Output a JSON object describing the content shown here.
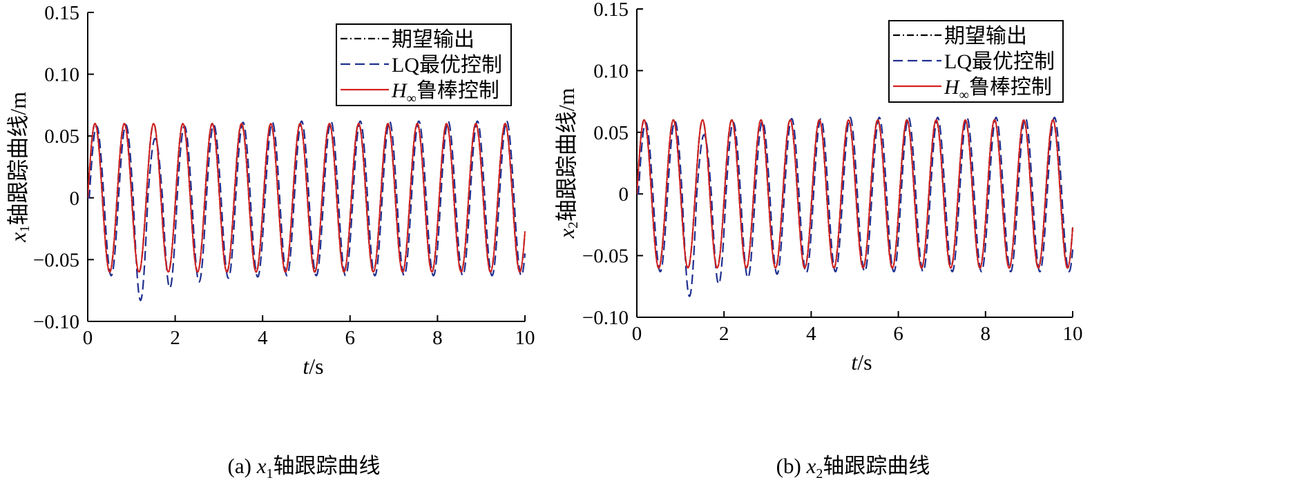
{
  "chart_data": [
    {
      "type": "line",
      "caption": "(a) x₁轴跟踪曲线",
      "xlabel": "t/s",
      "ylabel": "x₁轴跟踪曲线/m",
      "xlim": [
        0,
        10
      ],
      "ylim": [
        -0.1,
        0.15
      ],
      "xticks": [
        "0",
        "2",
        "4",
        "6",
        "8",
        "10"
      ],
      "yticks": [
        "0.15",
        "0.10",
        "0.05",
        "0",
        "−0.05",
        "−0.10"
      ],
      "legend_position": "top-right",
      "grid": false,
      "oscillation_period_s": 0.67,
      "series": [
        {
          "name": "期望输出",
          "style": "dash-dot",
          "color": "#000000",
          "amplitude": 0.06
        },
        {
          "name": "LQ最优控制",
          "style": "dashed",
          "color": "#1f2f8f",
          "trough_values": [
            -0.063,
            -0.083,
            -0.073,
            -0.068,
            -0.065,
            -0.064,
            -0.063,
            -0.063,
            -0.063,
            -0.063,
            -0.063,
            -0.063,
            -0.063,
            -0.063,
            -0.063
          ],
          "peak_values": [
            0.058,
            0.059,
            0.048,
            0.058,
            0.059,
            0.061,
            0.061,
            0.062,
            0.062,
            0.062,
            0.062,
            0.062,
            0.062,
            0.062,
            0.062
          ]
        },
        {
          "name": "H∞鲁棒控制",
          "style": "solid",
          "color": "#d62020",
          "amplitude": 0.06
        }
      ]
    },
    {
      "type": "line",
      "caption": "(b) x₂轴跟踪曲线",
      "xlabel": "t/s",
      "ylabel": "x₂轴跟踪曲线/m",
      "xlim": [
        0,
        10
      ],
      "ylim": [
        -0.1,
        0.15
      ],
      "xticks": [
        "0",
        "2",
        "4",
        "6",
        "8",
        "10"
      ],
      "yticks": [
        "0.15",
        "0.10",
        "0.05",
        "0",
        "−0.05",
        "−0.10"
      ],
      "legend_position": "top-right",
      "grid": false,
      "oscillation_period_s": 0.67,
      "series": [
        {
          "name": "期望输出",
          "style": "dash-dot",
          "color": "#000000",
          "amplitude": 0.06
        },
        {
          "name": "LQ最优控制",
          "style": "dashed",
          "color": "#1f2f8f",
          "trough_values": [
            -0.063,
            -0.083,
            -0.073,
            -0.068,
            -0.065,
            -0.064,
            -0.063,
            -0.063,
            -0.063,
            -0.063,
            -0.063,
            -0.063,
            -0.063,
            -0.063,
            -0.063
          ],
          "peak_values": [
            0.058,
            0.059,
            0.048,
            0.058,
            0.059,
            0.061,
            0.061,
            0.062,
            0.062,
            0.062,
            0.062,
            0.062,
            0.062,
            0.062,
            0.062
          ]
        },
        {
          "name": "H∞鲁棒控制",
          "style": "solid",
          "color": "#d62020",
          "amplitude": 0.06
        }
      ]
    }
  ]
}
